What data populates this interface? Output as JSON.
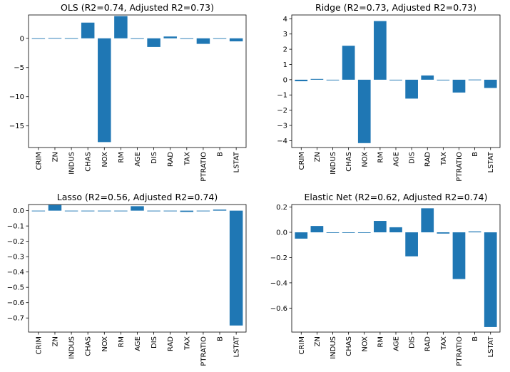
{
  "figure": {
    "bar_color": "#1f77b4",
    "background": "#ffffff"
  },
  "chart_data": [
    {
      "type": "bar",
      "title": "OLS (R2=0.74, Adjusted R2=0.73)",
      "xlabel": "",
      "ylabel": "",
      "categories": [
        "CRIM",
        "ZN",
        "INDUS",
        "CHAS",
        "NOX",
        "RM",
        "AGE",
        "DIS",
        "RAD",
        "TAX",
        "PTRATIO",
        "B",
        "LSTAT"
      ],
      "values": [
        -0.11,
        0.05,
        0.02,
        2.69,
        -17.77,
        3.81,
        0.0,
        -1.48,
        0.31,
        -0.01,
        -0.95,
        0.01,
        -0.52
      ],
      "ylim": [
        -18.7,
        4.0
      ],
      "yticks": [
        0,
        -5,
        -10,
        -15
      ],
      "ytick_labels": [
        "0",
        "−5",
        "−10",
        "−15"
      ]
    },
    {
      "type": "bar",
      "title": "Ridge (R2=0.73, Adjusted R2=0.73)",
      "xlabel": "",
      "ylabel": "",
      "categories": [
        "CRIM",
        "ZN",
        "INDUS",
        "CHAS",
        "NOX",
        "RM",
        "AGE",
        "DIS",
        "RAD",
        "TAX",
        "PTRATIO",
        "B",
        "LSTAT"
      ],
      "values": [
        -0.1,
        0.05,
        0.0,
        2.23,
        -4.16,
        3.85,
        -0.01,
        -1.24,
        0.28,
        -0.01,
        -0.84,
        0.01,
        -0.54
      ],
      "ylim": [
        -4.45,
        4.25
      ],
      "yticks": [
        4,
        3,
        2,
        1,
        0,
        -1,
        -2,
        -3,
        -4
      ],
      "ytick_labels": [
        "4",
        "3",
        "2",
        "1",
        "0",
        "−1",
        "−2",
        "−3",
        "−4"
      ]
    },
    {
      "type": "bar",
      "title": "Lasso (R2=0.56, Adjusted R2=0.74)",
      "xlabel": "",
      "ylabel": "",
      "categories": [
        "CRIM",
        "ZN",
        "INDUS",
        "CHAS",
        "NOX",
        "RM",
        "AGE",
        "DIS",
        "RAD",
        "TAX",
        "PTRATIO",
        "B",
        "LSTAT"
      ],
      "values": [
        -0.002,
        0.037,
        0.0,
        0.0,
        0.0,
        0.0,
        0.029,
        0.0,
        0.0,
        -0.008,
        0.0,
        0.007,
        -0.749
      ],
      "ylim": [
        -0.792,
        0.04
      ],
      "yticks": [
        0.0,
        -0.1,
        -0.2,
        -0.3,
        -0.4,
        -0.5,
        -0.6,
        -0.7
      ],
      "ytick_labels": [
        "0.0",
        "−0.1",
        "−0.2",
        "−0.3",
        "−0.4",
        "−0.5",
        "−0.6",
        "−0.7"
      ]
    },
    {
      "type": "bar",
      "title": "Elastic Net (R2=0.62, Adjusted R2=0.74)",
      "xlabel": "",
      "ylabel": "",
      "categories": [
        "CRIM",
        "ZN",
        "INDUS",
        "CHAS",
        "NOX",
        "RM",
        "AGE",
        "DIS",
        "RAD",
        "TAX",
        "PTRATIO",
        "B",
        "LSTAT"
      ],
      "values": [
        -0.05,
        0.05,
        0.0,
        0.0,
        0.0,
        0.09,
        0.04,
        -0.19,
        0.19,
        -0.01,
        -0.37,
        0.007,
        -0.75
      ],
      "ylim": [
        -0.79,
        0.22
      ],
      "yticks": [
        0.2,
        0.0,
        -0.2,
        -0.4,
        -0.6
      ],
      "ytick_labels": [
        "0.2",
        "0.0",
        "−0.2",
        "−0.4",
        "−0.6"
      ]
    }
  ]
}
